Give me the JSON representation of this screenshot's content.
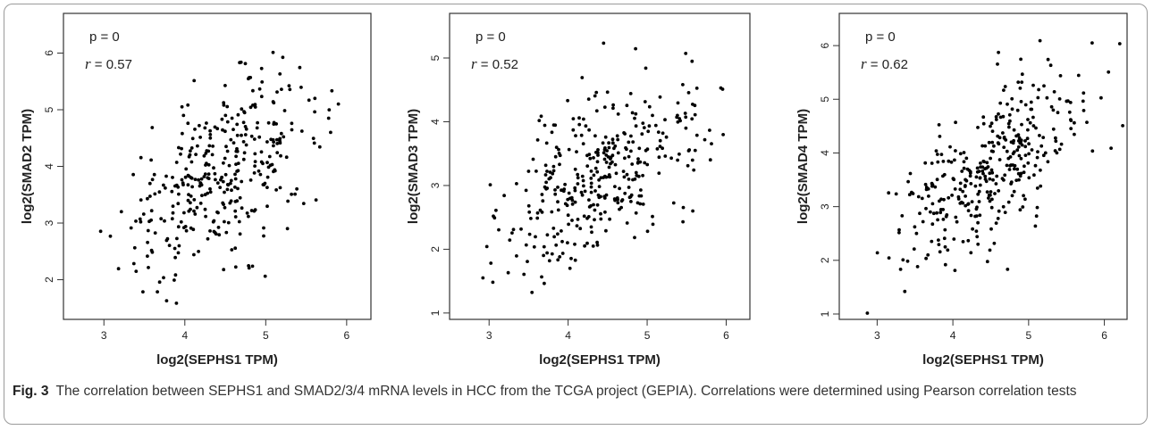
{
  "caption": {
    "label": "Fig. 3",
    "text": "The correlation between SEPHS1 and SMAD2/3/4 mRNA levels in HCC from the TCGA project (GEPIA). Correlations were determined using Pearson correlation tests"
  },
  "chart_data": [
    {
      "type": "scatter",
      "xlabel": "log2(SEPHS1 TPM)",
      "ylabel": "log2(SMAD2 TPM)",
      "annotation_p": "p = 0",
      "annotation_r_symbol": "r",
      "annotation_r_value": " = 0.57",
      "r": 0.57,
      "xlim": [
        2.5,
        6.3
      ],
      "ylim": [
        1.3,
        6.7
      ],
      "xticks": [
        "3",
        "4",
        "5",
        "6"
      ],
      "yticks": [
        "2",
        "3",
        "4",
        "5",
        "6"
      ],
      "n_points": 360,
      "point_color": "#000000",
      "grid": false
    },
    {
      "type": "scatter",
      "xlabel": "log2(SEPHS1 TPM)",
      "ylabel": "log2(SMAD3 TPM)",
      "annotation_p": "p = 0",
      "annotation_r_symbol": "r",
      "annotation_r_value": " = 0.52",
      "r": 0.52,
      "xlim": [
        2.5,
        6.3
      ],
      "ylim": [
        0.9,
        5.7
      ],
      "xticks": [
        "3",
        "4",
        "5",
        "6"
      ],
      "yticks": [
        "1",
        "2",
        "3",
        "4",
        "5"
      ],
      "n_points": 360,
      "point_color": "#000000",
      "grid": false
    },
    {
      "type": "scatter",
      "xlabel": "log2(SEPHS1 TPM)",
      "ylabel": "log2(SMAD4 TPM)",
      "annotation_p": "p = 0",
      "annotation_r_symbol": "r",
      "annotation_r_value": " = 0.62",
      "r": 0.62,
      "xlim": [
        2.5,
        6.3
      ],
      "ylim": [
        0.9,
        6.6
      ],
      "xticks": [
        "3",
        "4",
        "5",
        "6"
      ],
      "yticks": [
        "1",
        "2",
        "3",
        "4",
        "5",
        "6"
      ],
      "n_points": 360,
      "point_color": "#000000",
      "grid": false
    }
  ]
}
